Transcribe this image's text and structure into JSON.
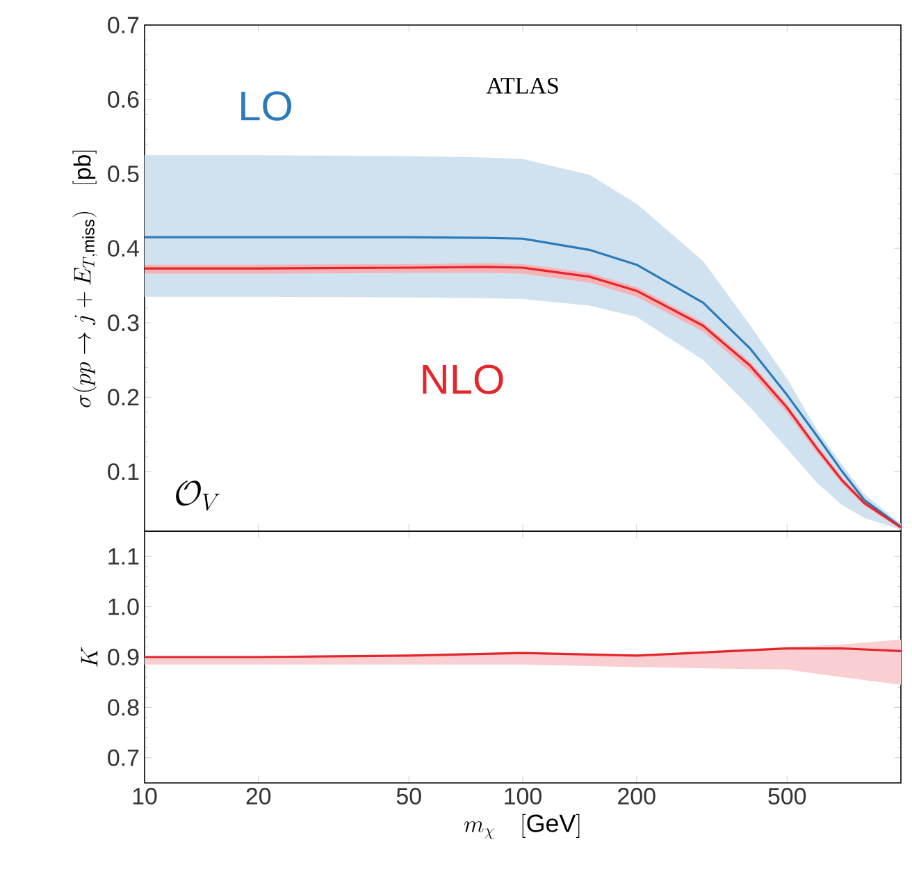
{
  "chart_data": [
    {
      "type": "line",
      "ylabel": "\\sigma(pp\\to j+E_{T,\\mathrm{miss}})\\quad[\\mathrm{pb}]",
      "annotations": [
        "ATLAS",
        "\\mathcal{O}_V"
      ],
      "log": "x",
      "tick_labels": "y",
      "xlim": [
        10,
        1000
      ],
      "xticks": [
        10,
        20,
        50,
        100,
        200,
        500
      ],
      "ylim": [
        0.02,
        0.7
      ],
      "yticks": [
        0.1,
        0.2,
        0.3,
        0.4,
        0.5,
        0.6,
        0.7
      ],
      "x": [
        10,
        20,
        50,
        80,
        100,
        150,
        200,
        300,
        400,
        500,
        600,
        700,
        800,
        1000
      ],
      "series": [
        {
          "name": "LO",
          "color": "#2b7bba",
          "values": [
            0.415,
            0.415,
            0.415,
            0.414,
            0.413,
            0.398,
            0.378,
            0.327,
            0.265,
            0.203,
            0.148,
            0.1,
            0.062,
            0.026
          ],
          "lower": [
            0.335,
            0.335,
            0.334,
            0.333,
            0.332,
            0.323,
            0.308,
            0.25,
            0.186,
            0.131,
            0.085,
            0.055,
            0.038,
            0.022
          ],
          "upper": [
            0.525,
            0.525,
            0.524,
            0.522,
            0.52,
            0.499,
            0.46,
            0.383,
            0.296,
            0.225,
            0.156,
            0.109,
            0.07,
            0.03
          ]
        },
        {
          "name": "NLO",
          "color": "#e3262d",
          "values": [
            0.373,
            0.373,
            0.374,
            0.375,
            0.374,
            0.362,
            0.343,
            0.296,
            0.242,
            0.186,
            0.131,
            0.088,
            0.058,
            0.025
          ],
          "lower": [
            0.366,
            0.366,
            0.367,
            0.367,
            0.366,
            0.354,
            0.335,
            0.288,
            0.234,
            0.179,
            0.125,
            0.083,
            0.054,
            0.023
          ],
          "upper": [
            0.378,
            0.378,
            0.379,
            0.38,
            0.379,
            0.367,
            0.348,
            0.301,
            0.247,
            0.191,
            0.136,
            0.092,
            0.062,
            0.027
          ]
        }
      ]
    },
    {
      "type": "line",
      "xlabel": "m_\\chi\\quad[\\mathrm{GeV}]",
      "ylabel": "K",
      "log": "x",
      "xlim": [
        10,
        1000
      ],
      "xticks": [
        10,
        20,
        50,
        100,
        200,
        500
      ],
      "ylim": [
        0.65,
        1.15
      ],
      "yticks": [
        0.7,
        0.8,
        0.9,
        {
          "value": 1,
          "label": "1.0"
        },
        1.1
      ],
      "x": [
        10,
        20,
        50,
        100,
        200,
        500,
        700,
        1000
      ],
      "series": [
        {
          "color": "#e3262d",
          "values": [
            0.9,
            0.9,
            0.903,
            0.908,
            0.903,
            0.917,
            0.917,
            0.912
          ],
          "lower": [
            0.885,
            0.885,
            0.885,
            0.885,
            0.88,
            0.875,
            0.86,
            0.845
          ],
          "upper": [
            0.902,
            0.902,
            0.905,
            0.91,
            0.905,
            0.92,
            0.925,
            0.935
          ]
        }
      ]
    }
  ]
}
